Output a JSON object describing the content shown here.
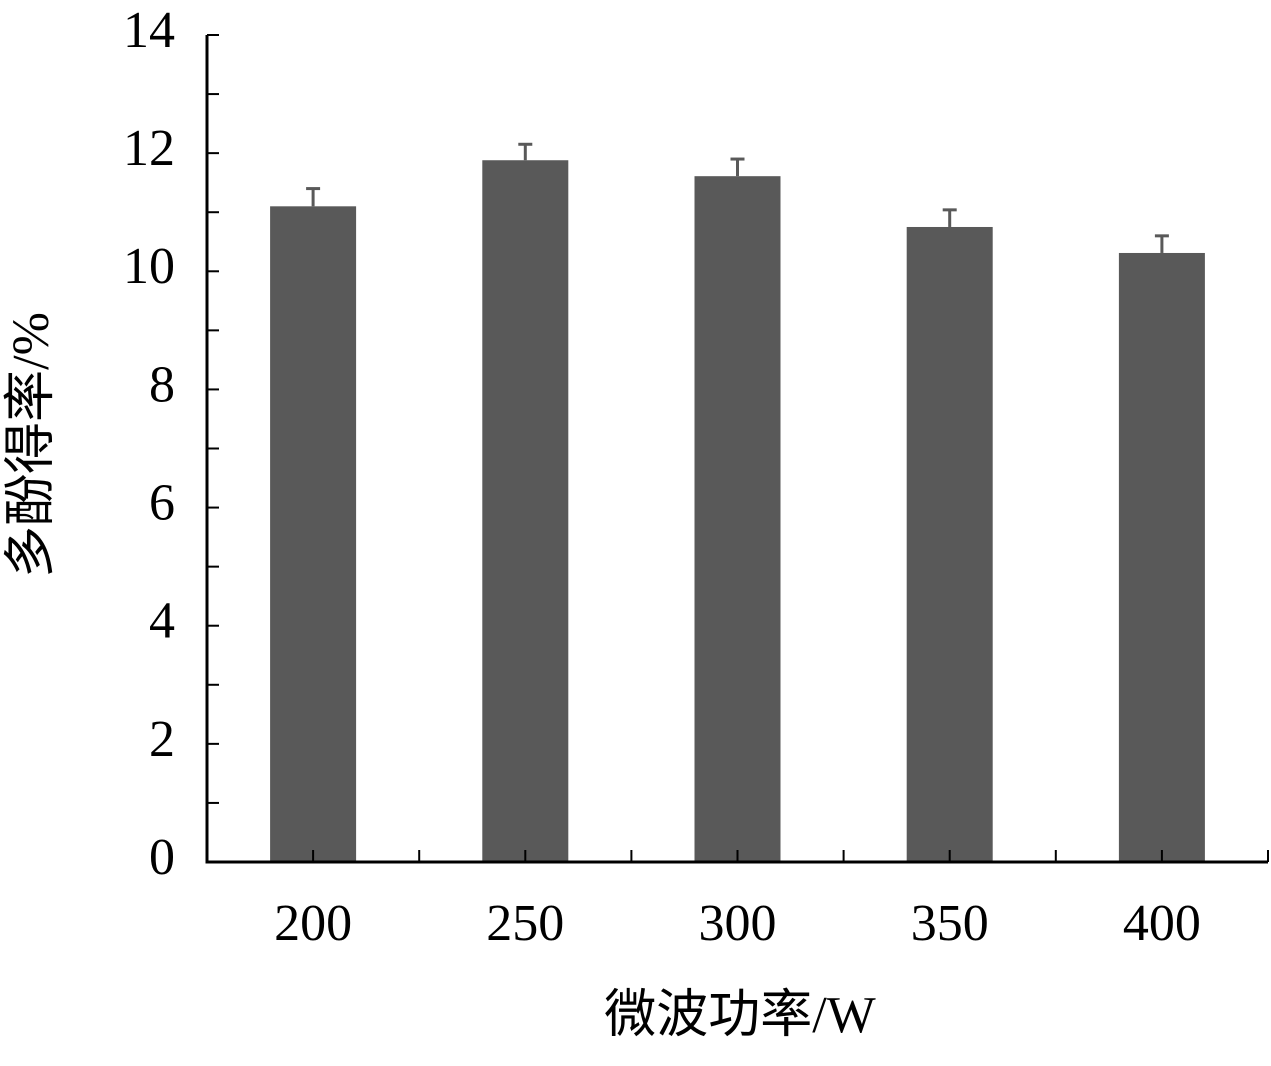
{
  "chart_data": {
    "type": "bar",
    "x_label": "微波功率/W",
    "y_label": "多酚得率/%",
    "categories": [
      "200",
      "250",
      "300",
      "350",
      "400"
    ],
    "values": [
      11.1,
      11.88,
      11.61,
      10.75,
      10.31
    ],
    "errors": [
      0.3,
      0.27,
      0.29,
      0.29,
      0.29
    ],
    "color": "#595959",
    "ylim": [
      0,
      14
    ],
    "yticks": [
      0,
      2,
      4,
      6,
      8,
      10,
      12,
      14
    ],
    "yminorticks": [
      1,
      3,
      5,
      7,
      9,
      11,
      13
    ],
    "grid": false
  }
}
